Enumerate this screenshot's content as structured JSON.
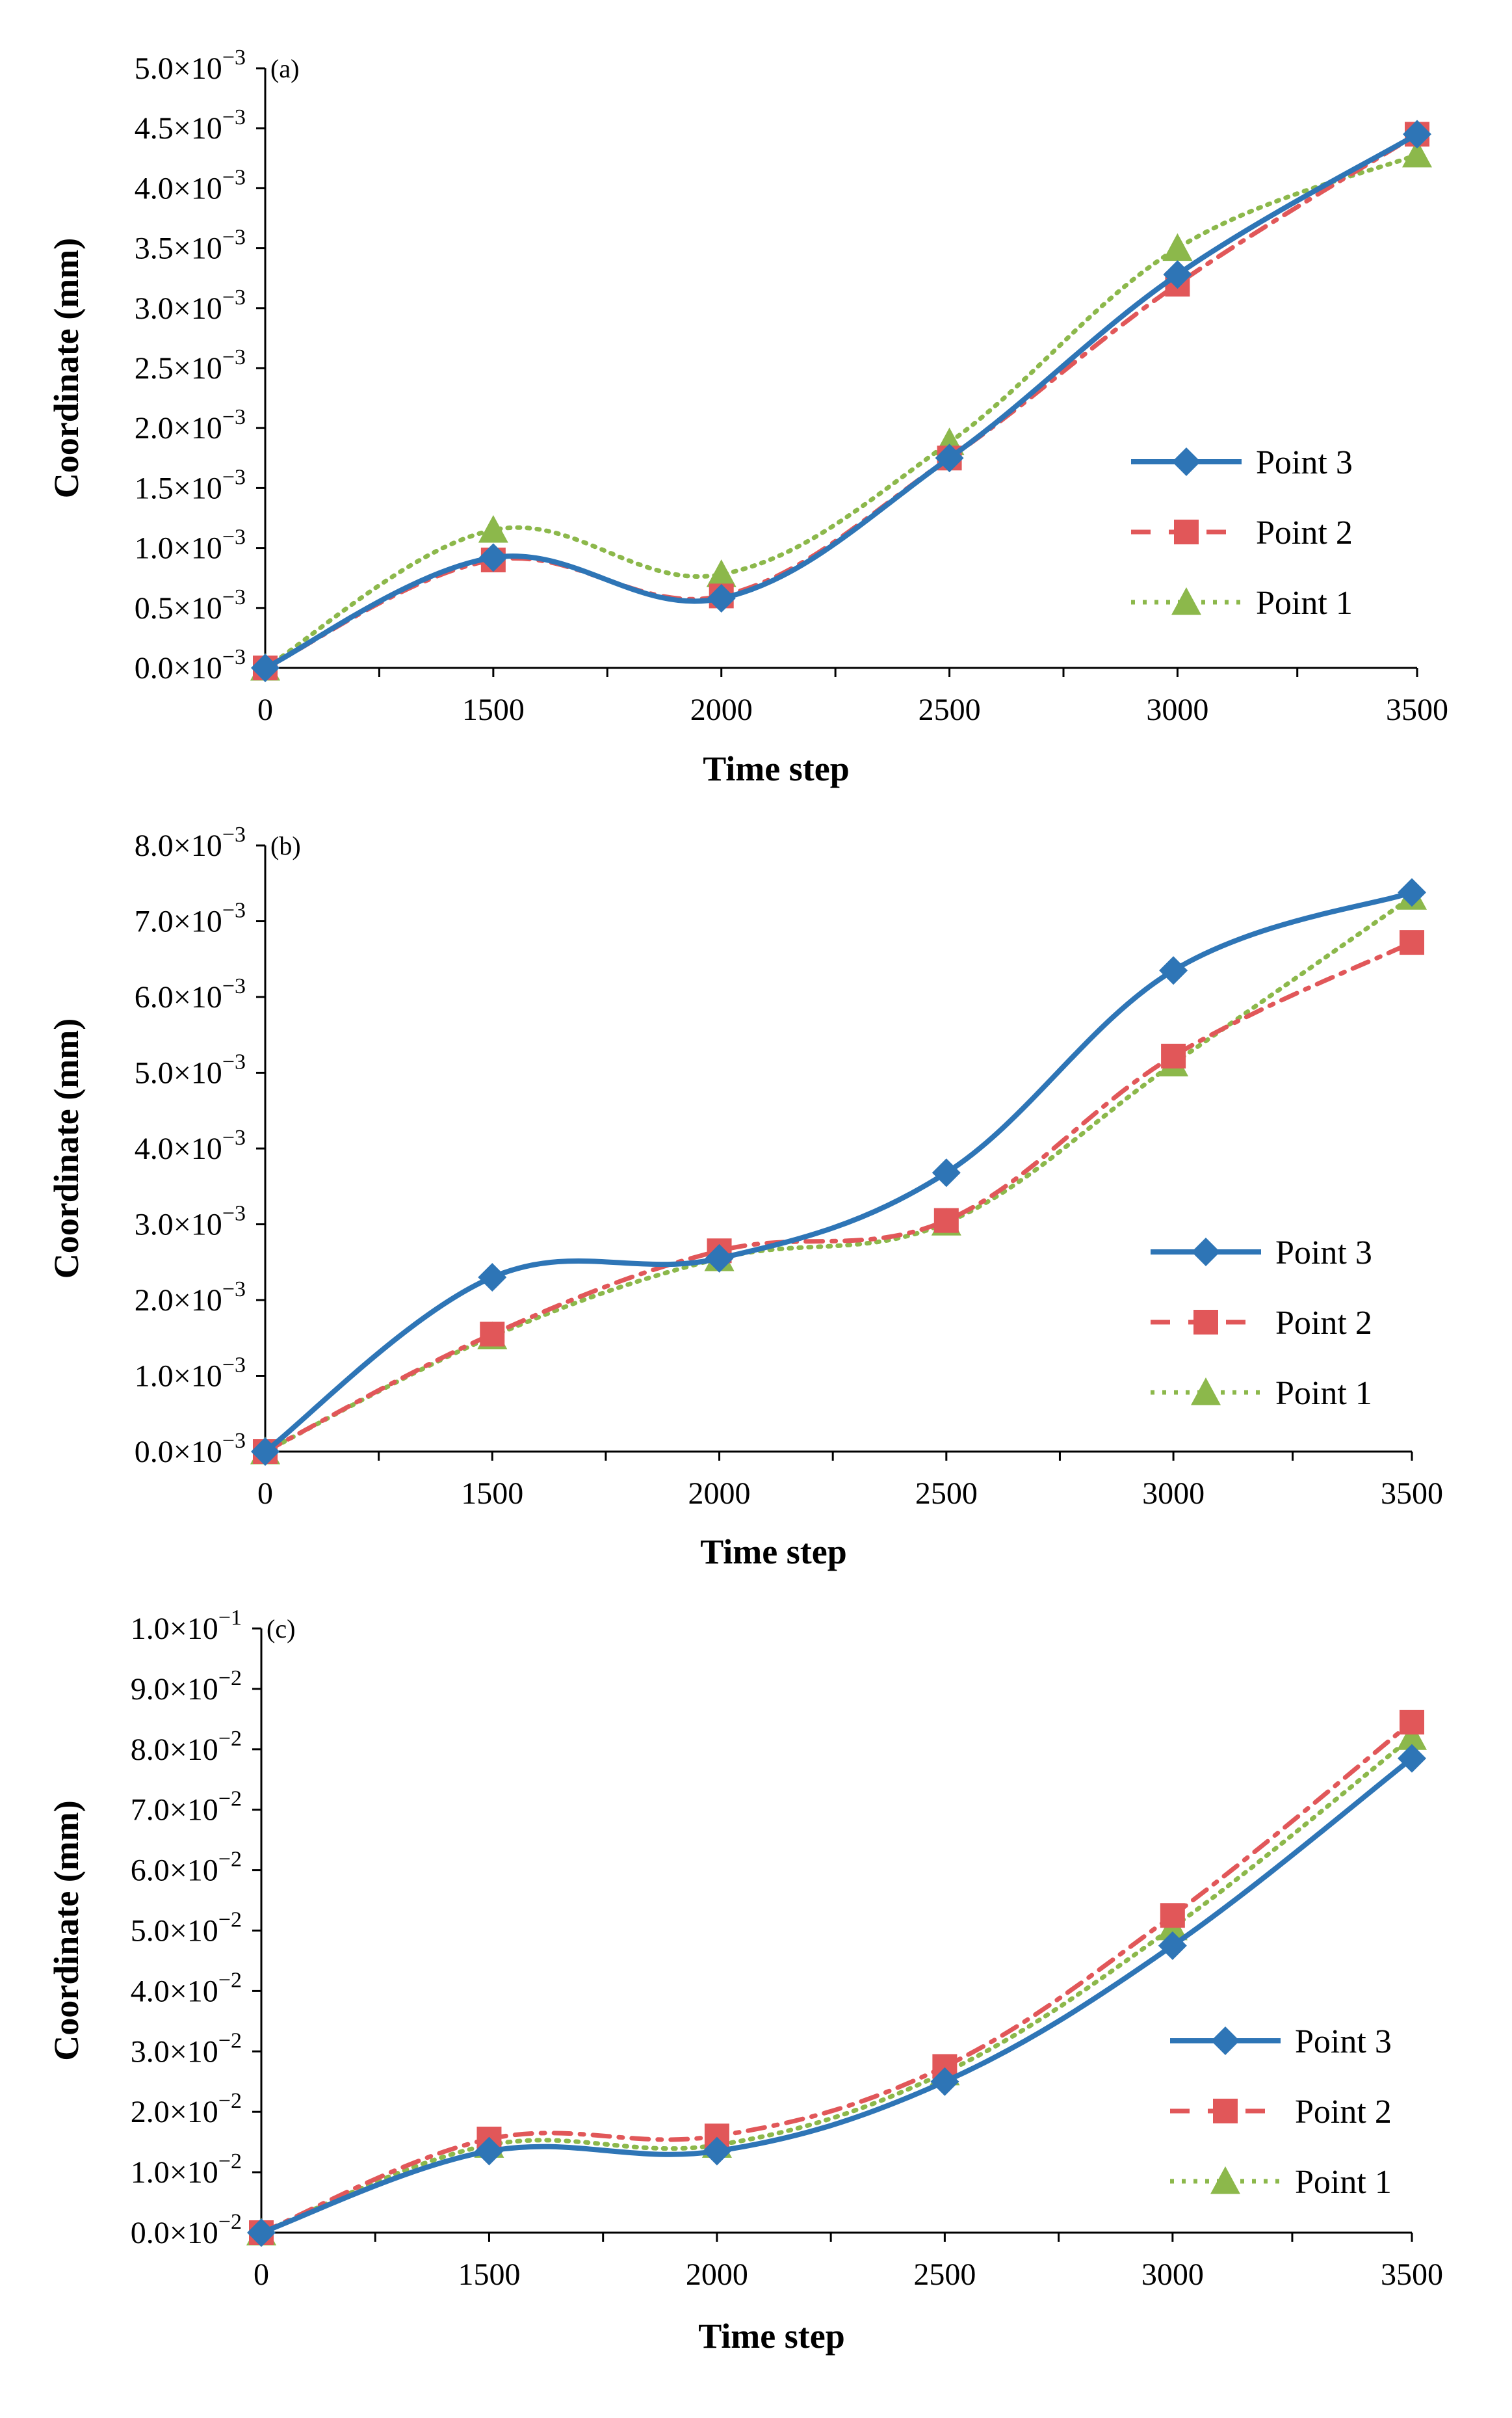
{
  "chart_data": [
    {
      "type": "line",
      "panel_label": "(a)",
      "categories": [
        "0",
        "1500",
        "2000",
        "2500",
        "3000",
        "3500"
      ],
      "xlabel": "Time step",
      "ylabel": "Coordinate (mm)",
      "ylim": [
        0,
        5.0
      ],
      "y_scale_exponent": -3,
      "y_ticks": [
        0.0,
        0.5,
        1.0,
        1.5,
        2.0,
        2.5,
        3.0,
        3.5,
        4.0,
        4.5,
        5.0
      ],
      "y_tick_labels": [
        "0.0×10",
        "0.5×10",
        "1.0×10",
        "1.5×10",
        "2.0×10",
        "2.5×10",
        "3.0×10",
        "3.5×10",
        "4.0×10",
        "4.5×10",
        "5.0×10"
      ],
      "y_tick_exponent_label": "−3",
      "legend_position": "right",
      "grid": false,
      "series": [
        {
          "name": "Point 3",
          "values": [
            0.0,
            0.92,
            0.58,
            1.75,
            3.28,
            4.45
          ]
        },
        {
          "name": "Point 2",
          "values": [
            0.0,
            0.9,
            0.6,
            1.75,
            3.2,
            4.45
          ]
        },
        {
          "name": "Point 1",
          "values": [
            0.0,
            1.15,
            0.78,
            1.88,
            3.5,
            4.28
          ]
        }
      ]
    },
    {
      "type": "line",
      "panel_label": "(b)",
      "categories": [
        "0",
        "1500",
        "2000",
        "2500",
        "3000",
        "3500"
      ],
      "xlabel": "Time step",
      "ylabel": "Coordinate (mm)",
      "ylim": [
        0,
        8.0
      ],
      "y_scale_exponent": -3,
      "y_ticks": [
        0.0,
        1.0,
        2.0,
        3.0,
        4.0,
        5.0,
        6.0,
        7.0,
        8.0
      ],
      "y_tick_labels": [
        "0.0×10",
        "1.0×10",
        "2.0×10",
        "3.0×10",
        "4.0×10",
        "5.0×10",
        "6.0×10",
        "7.0×10",
        "8.0×10"
      ],
      "y_tick_exponent_label": "−3",
      "legend_position": "right",
      "grid": false,
      "series": [
        {
          "name": "Point 3",
          "values": [
            0.0,
            2.3,
            2.55,
            3.68,
            6.35,
            7.38
          ]
        },
        {
          "name": "Point 2",
          "values": [
            0.0,
            1.55,
            2.65,
            3.05,
            5.22,
            6.72
          ]
        },
        {
          "name": "Point 1",
          "values": [
            0.0,
            1.52,
            2.55,
            3.02,
            5.12,
            7.32
          ]
        }
      ]
    },
    {
      "type": "line",
      "panel_label": "(c)",
      "categories": [
        "0",
        "1500",
        "2000",
        "2500",
        "3000",
        "3500"
      ],
      "xlabel": "Time step",
      "ylabel": "Coordinate (mm)",
      "ylim": [
        0,
        10.0
      ],
      "y_scale_exponent": -2,
      "y_ticks": [
        0.0,
        1.0,
        2.0,
        3.0,
        4.0,
        5.0,
        6.0,
        7.0,
        8.0,
        9.0,
        10.0
      ],
      "y_tick_labels": [
        "0.0×10",
        "1.0×10",
        "2.0×10",
        "3.0×10",
        "4.0×10",
        "5.0×10",
        "6.0×10",
        "7.0×10",
        "8.0×10",
        "9.0×10",
        "1.0×10"
      ],
      "y_tick_exponents": [
        "−2",
        "−2",
        "−2",
        "−2",
        "−2",
        "−2",
        "−2",
        "−2",
        "−2",
        "−2",
        "−1"
      ],
      "legend_position": "right",
      "grid": false,
      "series": [
        {
          "name": "Point 3",
          "values": [
            0.0,
            1.35,
            1.35,
            2.5,
            4.75,
            7.85
          ]
        },
        {
          "name": "Point 2",
          "values": [
            0.0,
            1.55,
            1.6,
            2.75,
            5.25,
            8.45
          ]
        },
        {
          "name": "Point 1",
          "values": [
            0.0,
            1.45,
            1.45,
            2.65,
            5.05,
            8.2
          ]
        }
      ]
    }
  ],
  "series_colors": [
    "#2e75b6",
    "#e15759",
    "#8cb84b"
  ]
}
